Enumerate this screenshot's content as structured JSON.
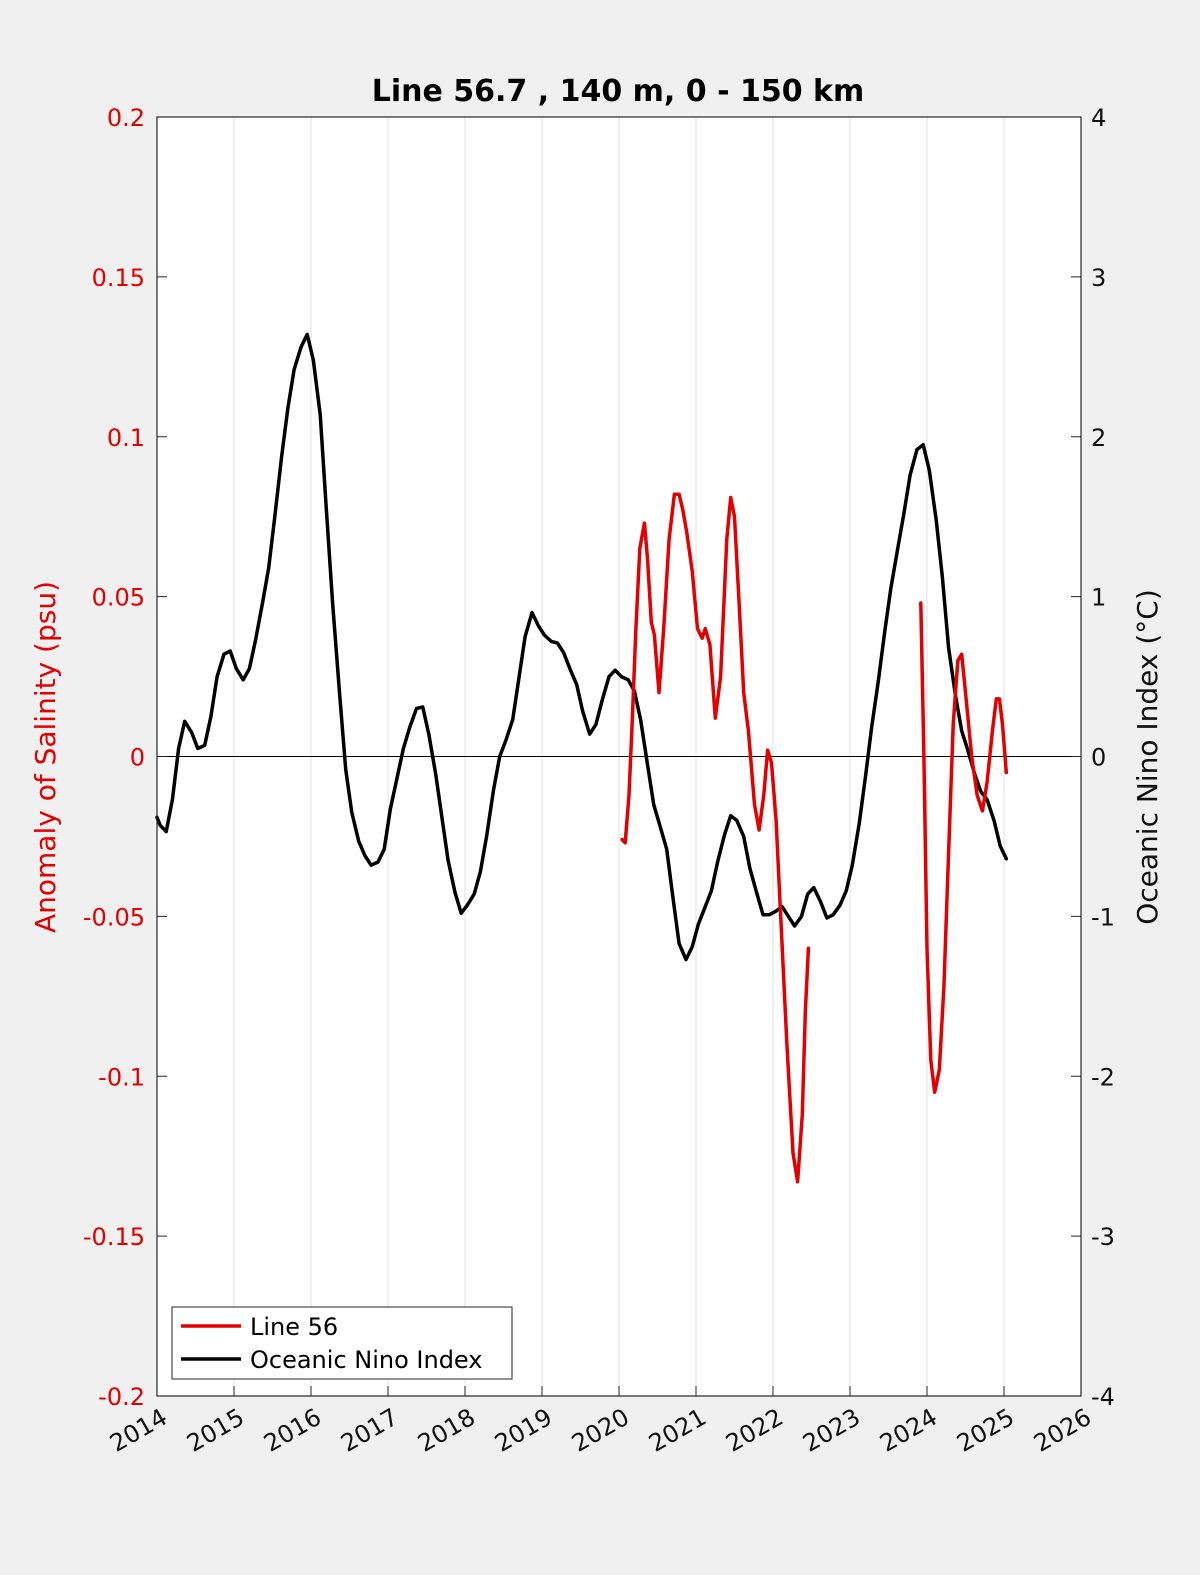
{
  "chart_data": {
    "type": "line",
    "title": "Line 56.7 , 140 m, 0 - 150 km",
    "xlabel": "",
    "ylabel_left": "Anomaly of Salinity (psu)",
    "ylabel_right": "Oceanic Nino Index (°C)",
    "xlim": [
      2014,
      2026
    ],
    "ylim_left": [
      -0.2,
      0.2
    ],
    "ylim_right": [
      -4,
      4
    ],
    "x_ticks": [
      "2014",
      "2015",
      "2016",
      "2017",
      "2018",
      "2019",
      "2020",
      "2021",
      "2022",
      "2023",
      "2024",
      "2025",
      "2026"
    ],
    "y_ticks_left": [
      "-0.2",
      "-0.15",
      "-0.1",
      "-0.05",
      "0",
      "0.05",
      "0.1",
      "0.15",
      "0.2"
    ],
    "y_ticks_right": [
      "-4",
      "-3",
      "-2",
      "-1",
      "0",
      "1",
      "2",
      "3",
      "4"
    ],
    "grid": "vertical",
    "legend_position": "bottom-left",
    "colors": {
      "line56": "#e30000",
      "oni": "#000000",
      "left_axis": "#e30000",
      "right_axis": "#111111",
      "background": "#f0f0f0",
      "plot_bg": "#ffffff"
    },
    "series": [
      {
        "name": "Line 56",
        "axis": "left",
        "segments": [
          [
            [
              2020.04,
              -0.026
            ],
            [
              2020.08,
              -0.027
            ],
            [
              2020.13,
              -0.012
            ],
            [
              2020.17,
              0.01
            ],
            [
              2020.22,
              0.04
            ],
            [
              2020.27,
              0.065
            ],
            [
              2020.33,
              0.073
            ],
            [
              2020.37,
              0.062
            ],
            [
              2020.42,
              0.042
            ],
            [
              2020.46,
              0.038
            ],
            [
              2020.52,
              0.02
            ],
            [
              2020.58,
              0.04
            ],
            [
              2020.65,
              0.068
            ],
            [
              2020.72,
              0.082
            ],
            [
              2020.78,
              0.082
            ],
            [
              2020.83,
              0.077
            ],
            [
              2020.88,
              0.07
            ],
            [
              2020.95,
              0.058
            ],
            [
              2021.02,
              0.04
            ],
            [
              2021.08,
              0.037
            ],
            [
              2021.12,
              0.04
            ],
            [
              2021.18,
              0.035
            ],
            [
              2021.25,
              0.012
            ],
            [
              2021.32,
              0.025
            ],
            [
              2021.4,
              0.068
            ],
            [
              2021.45,
              0.081
            ],
            [
              2021.5,
              0.075
            ],
            [
              2021.56,
              0.048
            ],
            [
              2021.62,
              0.02
            ],
            [
              2021.68,
              0.008
            ],
            [
              2021.76,
              -0.015
            ],
            [
              2021.82,
              -0.023
            ],
            [
              2021.88,
              -0.012
            ],
            [
              2021.93,
              0.002
            ],
            [
              2021.98,
              -0.002
            ],
            [
              2022.04,
              -0.02
            ],
            [
              2022.1,
              -0.05
            ],
            [
              2022.18,
              -0.09
            ],
            [
              2022.26,
              -0.124
            ],
            [
              2022.32,
              -0.133
            ],
            [
              2022.38,
              -0.112
            ],
            [
              2022.42,
              -0.08
            ],
            [
              2022.46,
              -0.06
            ]
          ],
          [
            [
              2023.92,
              0.048
            ],
            [
              2023.96,
              0.0
            ],
            [
              2024.0,
              -0.06
            ],
            [
              2024.05,
              -0.095
            ],
            [
              2024.1,
              -0.105
            ],
            [
              2024.16,
              -0.098
            ],
            [
              2024.22,
              -0.072
            ],
            [
              2024.28,
              -0.03
            ],
            [
              2024.34,
              0.01
            ],
            [
              2024.4,
              0.03
            ],
            [
              2024.45,
              0.032
            ],
            [
              2024.5,
              0.02
            ],
            [
              2024.58,
              0.0
            ],
            [
              2024.65,
              -0.012
            ],
            [
              2024.72,
              -0.017
            ],
            [
              2024.78,
              -0.008
            ],
            [
              2024.85,
              0.008
            ],
            [
              2024.9,
              0.018
            ],
            [
              2024.94,
              0.018
            ],
            [
              2024.98,
              0.01
            ],
            [
              2025.03,
              -0.005
            ]
          ]
        ]
      },
      {
        "name": "Oceanic Nino Index",
        "axis": "right",
        "points": [
          [
            2014.0,
            -0.38
          ],
          [
            2014.04,
            -0.43
          ],
          [
            2014.12,
            -0.47
          ],
          [
            2014.2,
            -0.27
          ],
          [
            2014.28,
            0.05
          ],
          [
            2014.36,
            0.22
          ],
          [
            2014.45,
            0.15
          ],
          [
            2014.53,
            0.05
          ],
          [
            2014.62,
            0.07
          ],
          [
            2014.7,
            0.25
          ],
          [
            2014.78,
            0.5
          ],
          [
            2014.87,
            0.64
          ],
          [
            2014.95,
            0.66
          ],
          [
            2015.03,
            0.55
          ],
          [
            2015.12,
            0.48
          ],
          [
            2015.2,
            0.55
          ],
          [
            2015.28,
            0.73
          ],
          [
            2015.37,
            0.96
          ],
          [
            2015.45,
            1.18
          ],
          [
            2015.53,
            1.5
          ],
          [
            2015.62,
            1.88
          ],
          [
            2015.7,
            2.18
          ],
          [
            2015.78,
            2.42
          ],
          [
            2015.87,
            2.56
          ],
          [
            2015.95,
            2.64
          ],
          [
            2016.03,
            2.48
          ],
          [
            2016.12,
            2.14
          ],
          [
            2016.2,
            1.54
          ],
          [
            2016.28,
            0.96
          ],
          [
            2016.37,
            0.4
          ],
          [
            2016.45,
            -0.08
          ],
          [
            2016.53,
            -0.35
          ],
          [
            2016.62,
            -0.53
          ],
          [
            2016.7,
            -0.62
          ],
          [
            2016.78,
            -0.68
          ],
          [
            2016.87,
            -0.66
          ],
          [
            2016.95,
            -0.58
          ],
          [
            2017.03,
            -0.33
          ],
          [
            2017.12,
            -0.13
          ],
          [
            2017.2,
            0.05
          ],
          [
            2017.28,
            0.18
          ],
          [
            2017.37,
            0.3
          ],
          [
            2017.45,
            0.31
          ],
          [
            2017.53,
            0.14
          ],
          [
            2017.62,
            -0.11
          ],
          [
            2017.7,
            -0.38
          ],
          [
            2017.78,
            -0.65
          ],
          [
            2017.87,
            -0.85
          ],
          [
            2017.95,
            -0.98
          ],
          [
            2018.03,
            -0.93
          ],
          [
            2018.12,
            -0.86
          ],
          [
            2018.2,
            -0.72
          ],
          [
            2018.28,
            -0.5
          ],
          [
            2018.37,
            -0.21
          ],
          [
            2018.45,
            0.0
          ],
          [
            2018.53,
            0.1
          ],
          [
            2018.62,
            0.23
          ],
          [
            2018.7,
            0.49
          ],
          [
            2018.78,
            0.75
          ],
          [
            2018.87,
            0.9
          ],
          [
            2018.95,
            0.82
          ],
          [
            2019.03,
            0.76
          ],
          [
            2019.12,
            0.72
          ],
          [
            2019.2,
            0.71
          ],
          [
            2019.28,
            0.65
          ],
          [
            2019.37,
            0.54
          ],
          [
            2019.45,
            0.45
          ],
          [
            2019.53,
            0.28
          ],
          [
            2019.62,
            0.14
          ],
          [
            2019.7,
            0.2
          ],
          [
            2019.78,
            0.35
          ],
          [
            2019.87,
            0.5
          ],
          [
            2019.95,
            0.54
          ],
          [
            2020.03,
            0.5
          ],
          [
            2020.12,
            0.48
          ],
          [
            2020.2,
            0.41
          ],
          [
            2020.28,
            0.23
          ],
          [
            2020.37,
            -0.05
          ],
          [
            2020.45,
            -0.3
          ],
          [
            2020.53,
            -0.43
          ],
          [
            2020.62,
            -0.58
          ],
          [
            2020.7,
            -0.88
          ],
          [
            2020.78,
            -1.17
          ],
          [
            2020.87,
            -1.27
          ],
          [
            2020.95,
            -1.19
          ],
          [
            2021.03,
            -1.05
          ],
          [
            2021.12,
            -0.94
          ],
          [
            2021.2,
            -0.84
          ],
          [
            2021.28,
            -0.66
          ],
          [
            2021.37,
            -0.49
          ],
          [
            2021.45,
            -0.37
          ],
          [
            2021.53,
            -0.4
          ],
          [
            2021.62,
            -0.5
          ],
          [
            2021.7,
            -0.7
          ],
          [
            2021.78,
            -0.84
          ],
          [
            2021.87,
            -0.99
          ],
          [
            2021.95,
            -0.99
          ],
          [
            2022.03,
            -0.97
          ],
          [
            2022.12,
            -0.94
          ],
          [
            2022.2,
            -1.0
          ],
          [
            2022.28,
            -1.06
          ],
          [
            2022.37,
            -1.0
          ],
          [
            2022.45,
            -0.86
          ],
          [
            2022.53,
            -0.82
          ],
          [
            2022.62,
            -0.91
          ],
          [
            2022.7,
            -1.01
          ],
          [
            2022.78,
            -0.99
          ],
          [
            2022.87,
            -0.93
          ],
          [
            2022.95,
            -0.84
          ],
          [
            2023.03,
            -0.68
          ],
          [
            2023.12,
            -0.42
          ],
          [
            2023.2,
            -0.13
          ],
          [
            2023.28,
            0.18
          ],
          [
            2023.37,
            0.48
          ],
          [
            2023.45,
            0.78
          ],
          [
            2023.53,
            1.05
          ],
          [
            2023.62,
            1.3
          ],
          [
            2023.7,
            1.52
          ],
          [
            2023.78,
            1.76
          ],
          [
            2023.87,
            1.92
          ],
          [
            2023.95,
            1.95
          ],
          [
            2024.03,
            1.79
          ],
          [
            2024.12,
            1.48
          ],
          [
            2024.2,
            1.12
          ],
          [
            2024.28,
            0.68
          ],
          [
            2024.37,
            0.38
          ],
          [
            2024.45,
            0.16
          ],
          [
            2024.53,
            0.04
          ],
          [
            2024.62,
            -0.11
          ],
          [
            2024.7,
            -0.22
          ],
          [
            2024.78,
            -0.27
          ],
          [
            2024.87,
            -0.4
          ],
          [
            2024.95,
            -0.56
          ],
          [
            2025.03,
            -0.64
          ]
        ]
      }
    ]
  }
}
